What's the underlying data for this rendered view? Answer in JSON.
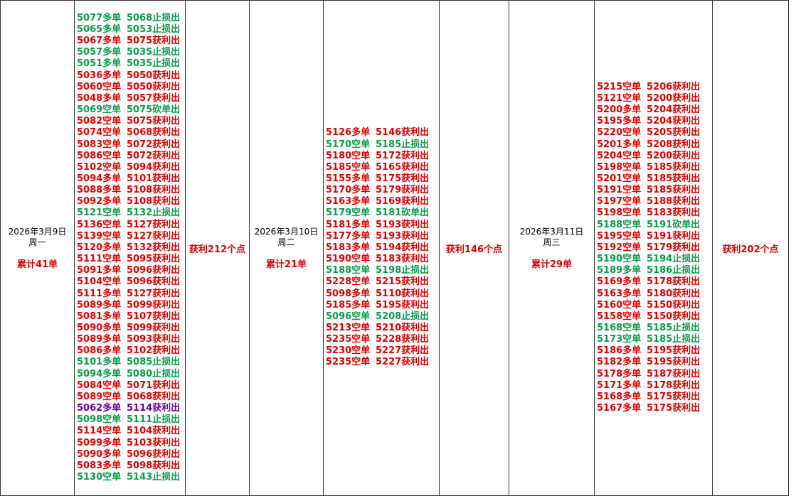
{
  "days": [
    {
      "date": "2026年3月9日",
      "weekday": "周一",
      "count": "累计41单",
      "profit": "获利212个点",
      "trades": [
        {
          "entry": "5077多单",
          "exit": "5068止损出",
          "color": "#0a9a4a"
        },
        {
          "entry": "5065多单",
          "exit": "5053止损出",
          "color": "#0a9a4a"
        },
        {
          "entry": "5067多单",
          "exit": "5075获利出",
          "color": "#e00000"
        },
        {
          "entry": "5057多单",
          "exit": "5035止损出",
          "color": "#0a9a4a"
        },
        {
          "entry": "5051多单",
          "exit": "5035止损出",
          "color": "#0a9a4a"
        },
        {
          "entry": "5036多单",
          "exit": "5050获利出",
          "color": "#e00000"
        },
        {
          "entry": "5060空单",
          "exit": "5050获利出",
          "color": "#e00000"
        },
        {
          "entry": "5048多单",
          "exit": "5057获利出",
          "color": "#e00000"
        },
        {
          "entry": "5069空单",
          "exit": "5075砍单出",
          "color": "#0a9a4a"
        },
        {
          "entry": "5082空单",
          "exit": "5075获利出",
          "color": "#e00000"
        },
        {
          "entry": "5074空单",
          "exit": "5068获利出",
          "color": "#e00000"
        },
        {
          "entry": "5083空单",
          "exit": "5072获利出",
          "color": "#e00000"
        },
        {
          "entry": "5086空单",
          "exit": "5072获利出",
          "color": "#e00000"
        },
        {
          "entry": "5102空单",
          "exit": "5094获利出",
          "color": "#e00000"
        },
        {
          "entry": "5094多单",
          "exit": "5101获利出",
          "color": "#e00000"
        },
        {
          "entry": "5088多单",
          "exit": "5108获利出",
          "color": "#e00000"
        },
        {
          "entry": "5092多单",
          "exit": "5108获利出",
          "color": "#e00000"
        },
        {
          "entry": "5121空单",
          "exit": "5132止损出",
          "color": "#0a9a4a"
        },
        {
          "entry": "5136空单",
          "exit": "5127获利出",
          "color": "#e00000"
        },
        {
          "entry": "5139空单",
          "exit": "5127获利出",
          "color": "#e00000"
        },
        {
          "entry": "5120多单",
          "exit": "5132获利出",
          "color": "#e00000"
        },
        {
          "entry": "5111空单",
          "exit": "5095获利出",
          "color": "#e00000"
        },
        {
          "entry": "5091多单",
          "exit": "5096获利出",
          "color": "#e00000"
        },
        {
          "entry": "5104空单",
          "exit": "5096获利出",
          "color": "#e00000"
        },
        {
          "entry": "5111多单",
          "exit": "5127获利出",
          "color": "#e00000"
        },
        {
          "entry": "5089多单",
          "exit": "5099获利出",
          "color": "#e00000"
        },
        {
          "entry": "5081多单",
          "exit": "5107获利出",
          "color": "#e00000"
        },
        {
          "entry": "5090多单",
          "exit": "5099获利出",
          "color": "#e00000"
        },
        {
          "entry": "5089多单",
          "exit": "5093获利出",
          "color": "#e00000"
        },
        {
          "entry": "5086多单",
          "exit": "5102获利出",
          "color": "#e00000"
        },
        {
          "entry": "5101多单",
          "exit": "5085止损出",
          "color": "#0a9a4a"
        },
        {
          "entry": "5094多单",
          "exit": "5080止损出",
          "color": "#0a9a4a"
        },
        {
          "entry": "5084空单",
          "exit": "5071获利出",
          "color": "#e00000"
        },
        {
          "entry": "5089空单",
          "exit": "5068获利出",
          "color": "#e00000"
        },
        {
          "entry": "5062多单",
          "exit": "5114获利出",
          "color": "#660099"
        },
        {
          "entry": "5098空单",
          "exit": "5111止损出",
          "color": "#0a9a4a"
        },
        {
          "entry": "5114空单",
          "exit": "5104获利出",
          "color": "#e00000"
        },
        {
          "entry": "5099多单",
          "exit": "5103获利出",
          "color": "#e00000"
        },
        {
          "entry": "5090多单",
          "exit": "5096获利出",
          "color": "#e00000"
        },
        {
          "entry": "5083多单",
          "exit": "5098获利出",
          "color": "#e00000"
        },
        {
          "entry": "5130空单",
          "exit": "5143止损出",
          "color": "#0a9a4a"
        }
      ]
    },
    {
      "date": "2026年3月10日",
      "weekday": "周二",
      "count": "累计21单",
      "profit": "获利146个点",
      "trades": [
        {
          "entry": "5126多单",
          "exit": "5146获利出",
          "color": "#e00000"
        },
        {
          "entry": "5170空单",
          "exit": "5185止损出",
          "color": "#0a9a4a"
        },
        {
          "entry": "5180空单",
          "exit": "5172获利出",
          "color": "#e00000"
        },
        {
          "entry": "5185空单",
          "exit": "5165获利出",
          "color": "#e00000"
        },
        {
          "entry": "5155多单",
          "exit": "5175获利出",
          "color": "#e00000"
        },
        {
          "entry": "5170多单",
          "exit": "5179获利出",
          "color": "#e00000"
        },
        {
          "entry": "5163多单",
          "exit": "5169获利出",
          "color": "#e00000"
        },
        {
          "entry": "5179空单",
          "exit": "5181砍单出",
          "color": "#0a9a4a"
        },
        {
          "entry": "5181多单",
          "exit": "5193获利出",
          "color": "#e00000"
        },
        {
          "entry": "5177多单",
          "exit": "5193获利出",
          "color": "#e00000"
        },
        {
          "entry": "5183多单",
          "exit": "5194获利出",
          "color": "#e00000"
        },
        {
          "entry": "5190空单",
          "exit": "5183获利出",
          "color": "#e00000"
        },
        {
          "entry": "5188空单",
          "exit": "5198止损出",
          "color": "#0a9a4a"
        },
        {
          "entry": "5228空单",
          "exit": "5215获利出",
          "color": "#e00000"
        },
        {
          "entry": "5098多单",
          "exit": "5110获利出",
          "color": "#e00000"
        },
        {
          "entry": "5185多单",
          "exit": "5195获利出",
          "color": "#e00000"
        },
        {
          "entry": "5096空单",
          "exit": "5208止损出",
          "color": "#0a9a4a"
        },
        {
          "entry": "5213空单",
          "exit": "5210获利出",
          "color": "#e00000"
        },
        {
          "entry": "5235空单",
          "exit": "5228获利出",
          "color": "#e00000"
        },
        {
          "entry": "5230空单",
          "exit": "5227获利出",
          "color": "#e00000"
        },
        {
          "entry": "5235空单",
          "exit": "5227获利出",
          "color": "#e00000"
        }
      ]
    },
    {
      "date": "2026年3月11日",
      "weekday": "周三",
      "count": "累计29单",
      "profit": "获利202个点",
      "trades": [
        {
          "entry": "5215空单",
          "exit": "5206获利出",
          "color": "#e00000"
        },
        {
          "entry": "5121空单",
          "exit": "5200获利出",
          "color": "#e00000"
        },
        {
          "entry": "5200多单",
          "exit": "5204获利出",
          "color": "#e00000"
        },
        {
          "entry": "5195多单",
          "exit": "5204获利出",
          "color": "#e00000"
        },
        {
          "entry": "5220空单",
          "exit": "5205获利出",
          "color": "#e00000"
        },
        {
          "entry": "5201多单",
          "exit": "5208获利出",
          "color": "#e00000"
        },
        {
          "entry": "5204空单",
          "exit": "5200获利出",
          "color": "#e00000"
        },
        {
          "entry": "5198空单",
          "exit": "5185获利出",
          "color": "#e00000"
        },
        {
          "entry": "5201空单",
          "exit": "5185获利出",
          "color": "#e00000"
        },
        {
          "entry": "5191空单",
          "exit": "5185获利出",
          "color": "#e00000"
        },
        {
          "entry": "5197空单",
          "exit": "5188获利出",
          "color": "#e00000"
        },
        {
          "entry": "5198空单",
          "exit": "5183获利出",
          "color": "#e00000"
        },
        {
          "entry": "5188空单",
          "exit": "5191砍单出",
          "color": "#0a9a4a"
        },
        {
          "entry": "5195空单",
          "exit": "5191获利出",
          "color": "#e00000"
        },
        {
          "entry": "5192空单",
          "exit": "5179获利出",
          "color": "#e00000"
        },
        {
          "entry": "5190空单",
          "exit": "5194止损出",
          "color": "#0a9a4a"
        },
        {
          "entry": "5189多单",
          "exit": "5186止损出",
          "color": "#0a9a4a"
        },
        {
          "entry": "5169多单",
          "exit": "5178获利出",
          "color": "#e00000"
        },
        {
          "entry": "5163多单",
          "exit": "5180获利出",
          "color": "#e00000"
        },
        {
          "entry": "5160空单",
          "exit": "5150获利出",
          "color": "#e00000"
        },
        {
          "entry": "5158空单",
          "exit": "5150获利出",
          "color": "#e00000"
        },
        {
          "entry": "5168空单",
          "exit": "5185止损出",
          "color": "#0a9a4a"
        },
        {
          "entry": "5173空单",
          "exit": "5185止损出",
          "color": "#0a9a4a"
        },
        {
          "entry": "5186多单",
          "exit": "5195获利出",
          "color": "#e00000"
        },
        {
          "entry": "5182多单",
          "exit": "5195获利出",
          "color": "#e00000"
        },
        {
          "entry": "5178多单",
          "exit": "5187获利出",
          "color": "#e00000"
        },
        {
          "entry": "5171多单",
          "exit": "5178获利出",
          "color": "#e00000"
        },
        {
          "entry": "5168多单",
          "exit": "5175获利出",
          "color": "#e00000"
        },
        {
          "entry": "5167多单",
          "exit": "5175获利出",
          "color": "#e00000"
        }
      ]
    }
  ]
}
